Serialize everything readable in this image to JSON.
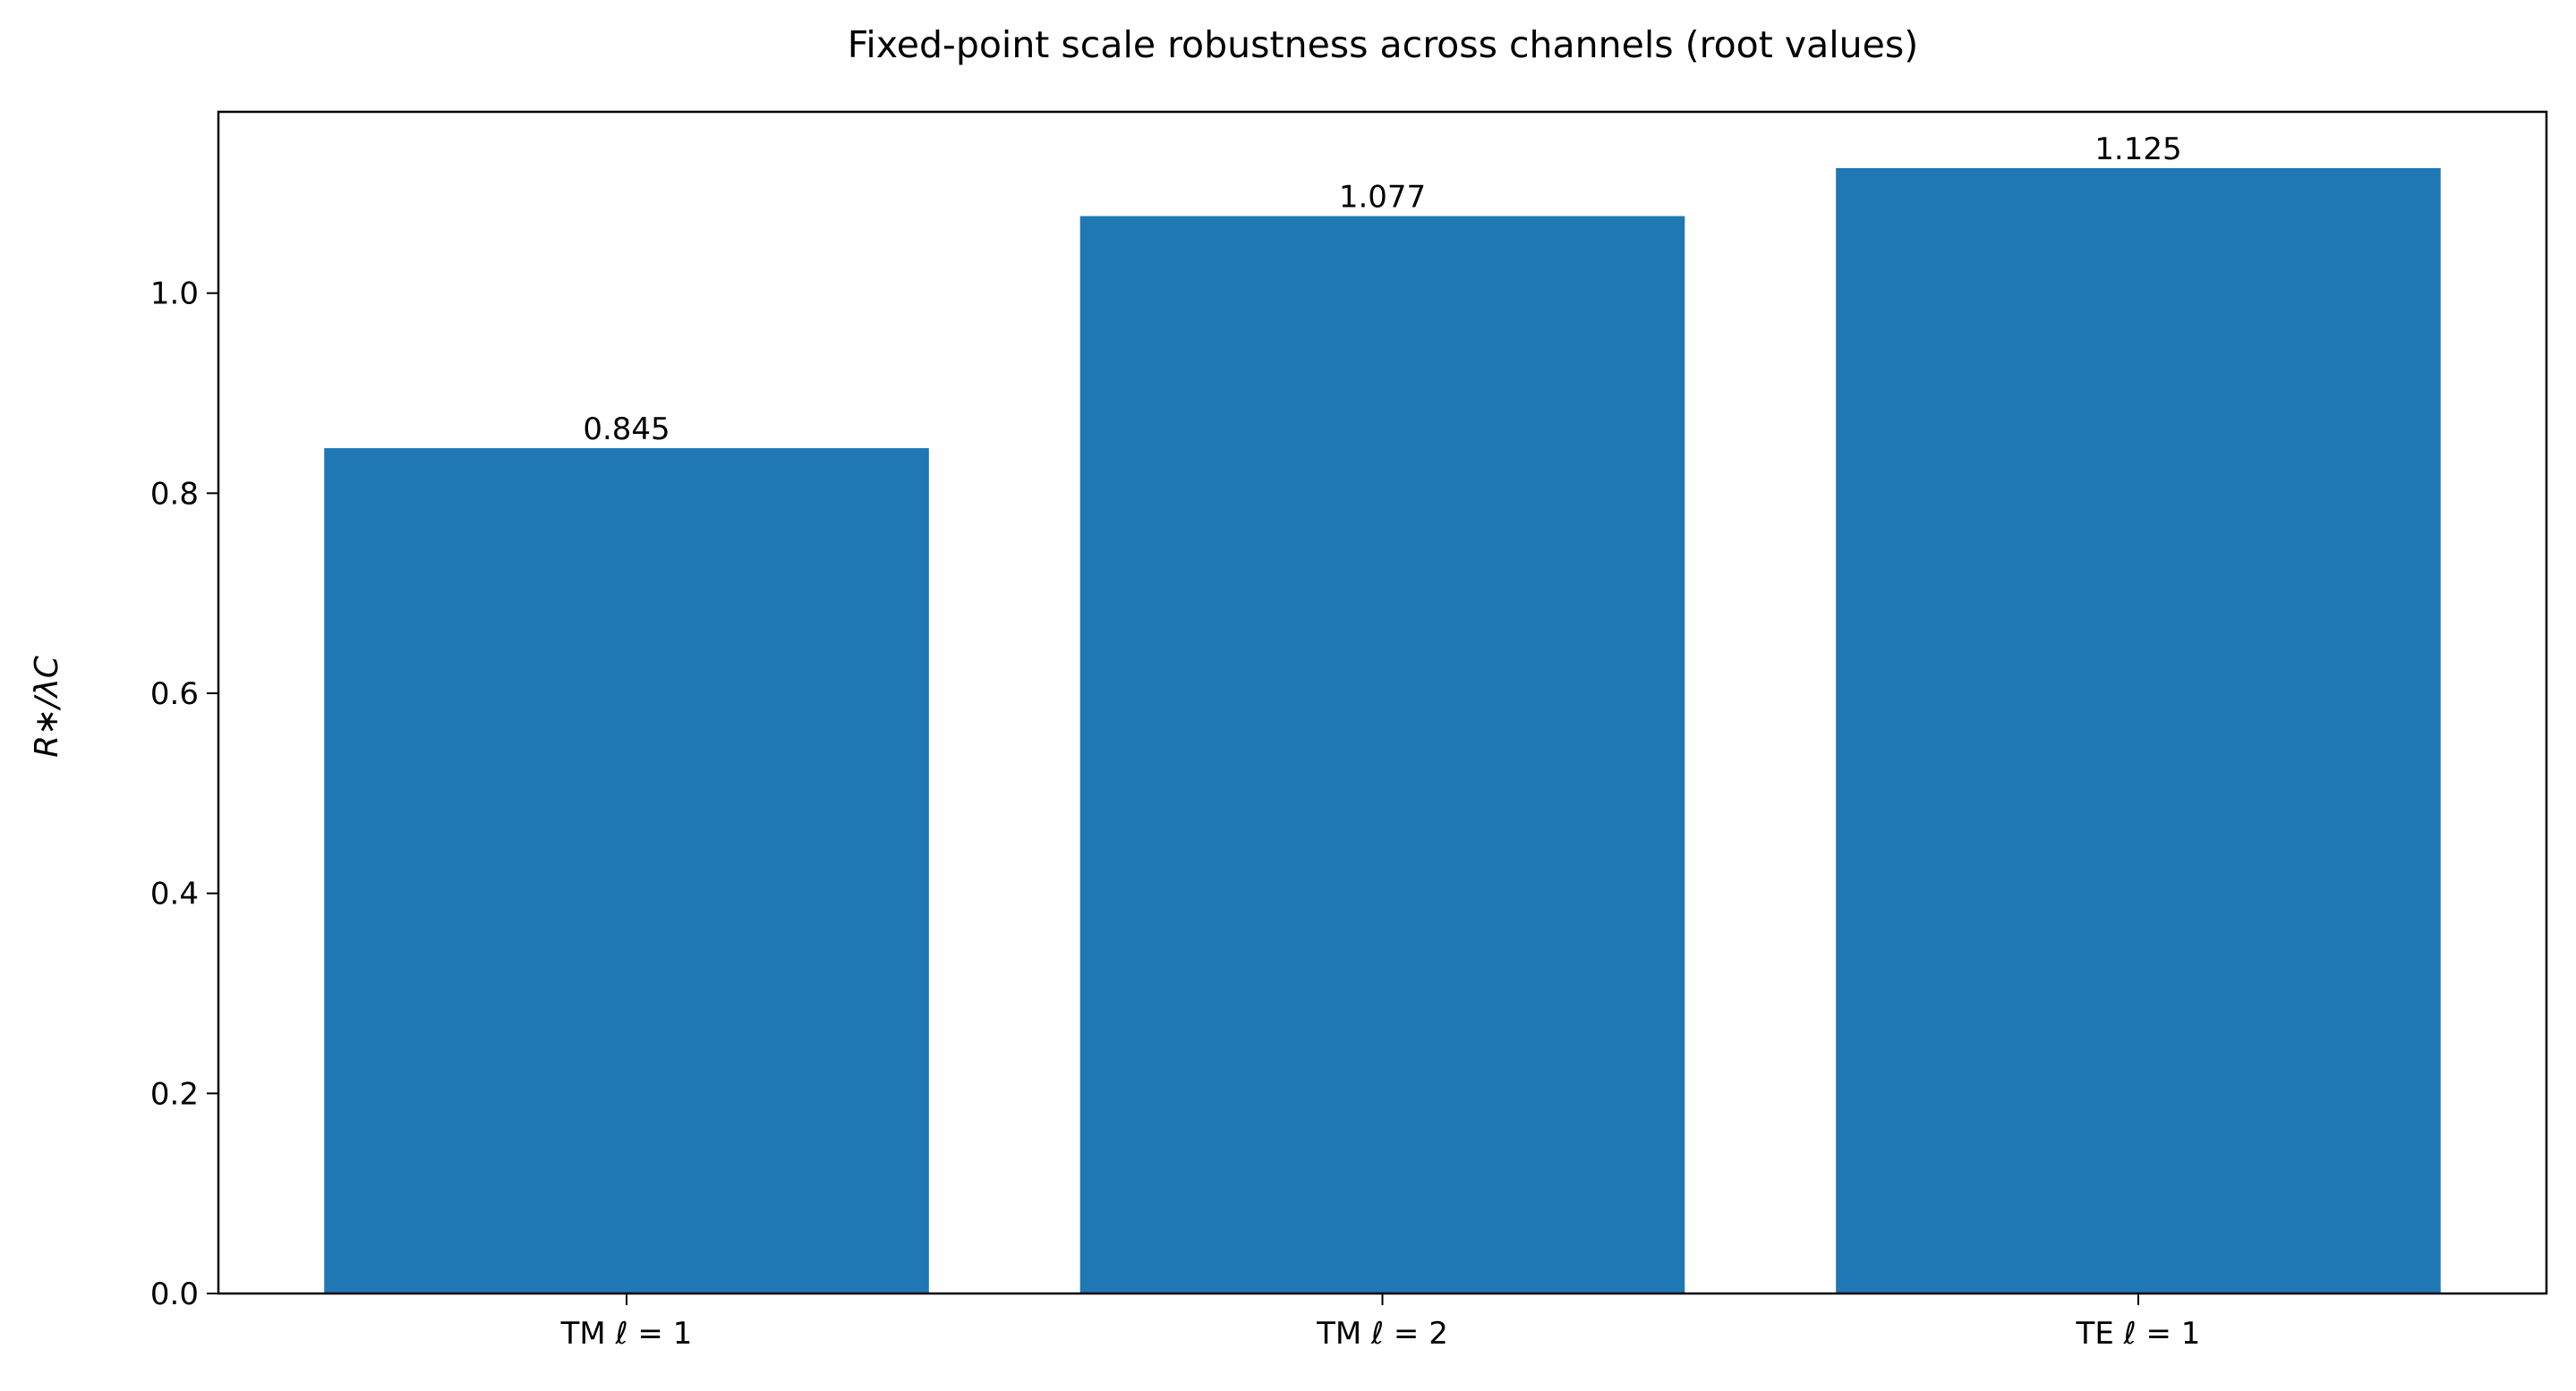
{
  "chart_data": {
    "type": "bar",
    "title": "Fixed-point scale robustness across channels (root values)",
    "y_label": "R∗/λC",
    "categories": [
      "TM ℓ = 1",
      "TM ℓ = 2",
      "TE ℓ = 1"
    ],
    "values": [
      0.845,
      1.077,
      1.125
    ],
    "color": "#1f77b4",
    "ylim": [
      0,
      1.18125
    ],
    "yticks": [
      {
        "value": 0,
        "label": "0.0"
      },
      0.2,
      0.4,
      0.6,
      0.8,
      {
        "value": 1,
        "label": "1.0"
      }
    ],
    "grid": false
  }
}
